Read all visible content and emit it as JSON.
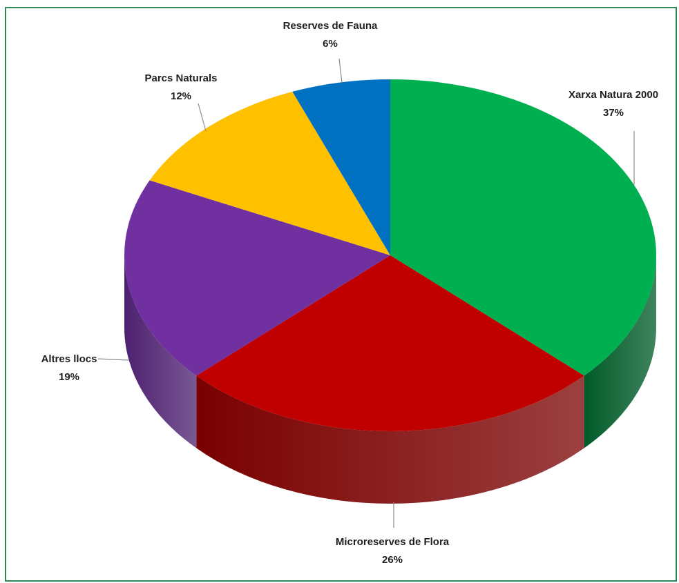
{
  "chart_data": {
    "type": "pie",
    "style": "3d",
    "title": "",
    "slices": [
      {
        "label": "Xarxa Natura 2000",
        "value": 37,
        "percent_label": "37%",
        "color": "#00b050",
        "side_color": "#005a28"
      },
      {
        "label": "Microreserves de Flora",
        "value": 26,
        "percent_label": "26%",
        "color": "#c00000",
        "side_color": "#7a0000"
      },
      {
        "label": "Altres llocs",
        "value": 19,
        "percent_label": "19%",
        "color": "#7030a0",
        "side_color": "#4d2070"
      },
      {
        "label": "Parcs Naturals",
        "value": 12,
        "percent_label": "12%",
        "color": "#ffc000",
        "side_color": "#b88a00"
      },
      {
        "label": "Reserves de Fauna",
        "value": 6,
        "percent_label": "6%",
        "color": "#0070c0",
        "side_color": "#004e86"
      }
    ],
    "legend": "none",
    "frame_color": "#2e8b57"
  }
}
